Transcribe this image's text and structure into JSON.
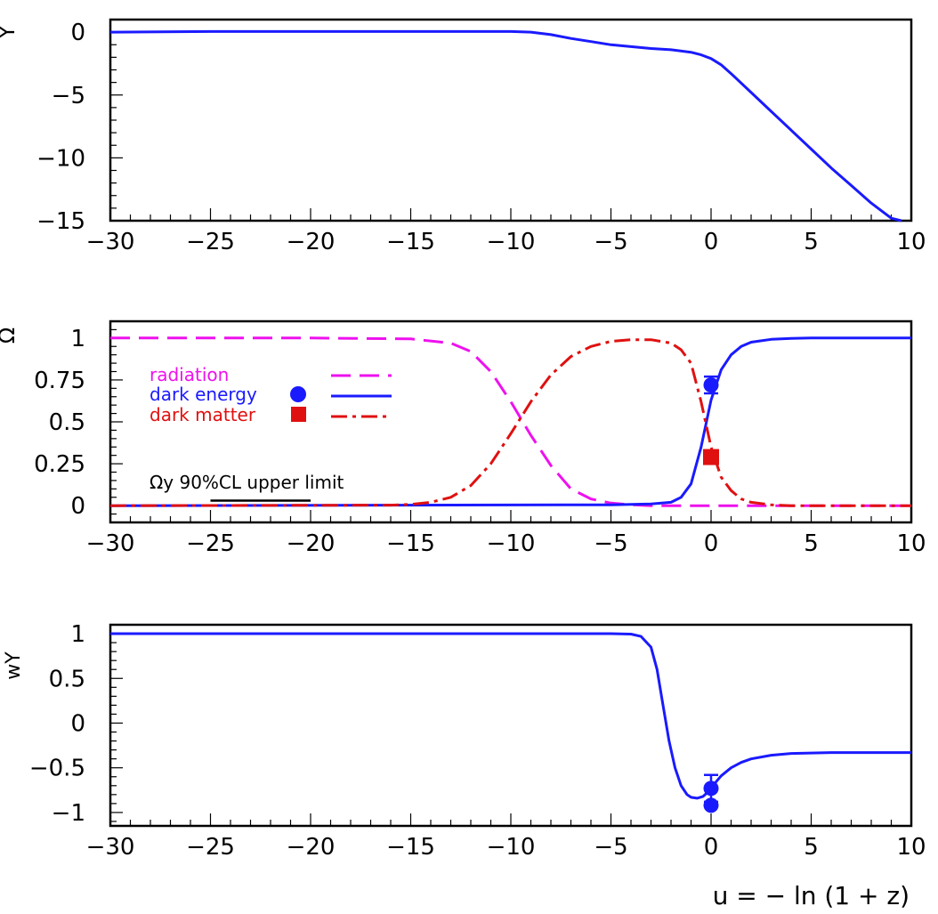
{
  "colors": {
    "frame": "#000000",
    "dark_energy": "#1a1aff",
    "dark_matter": "#e01010",
    "radiation": "#ee11ee"
  },
  "x_axis": {
    "ticks": [
      "−30",
      "−25",
      "−20",
      "−15",
      "−10",
      "−5",
      "0",
      "5",
      "10"
    ],
    "label": "u = − ln (1 + z)"
  },
  "chart_data": [
    {
      "type": "line",
      "ylabel": "Y",
      "xlim": [
        -30,
        10
      ],
      "ylim": [
        -15,
        1
      ],
      "y_ticks": [
        "0",
        "−5",
        "−10",
        "−15"
      ],
      "series": [
        {
          "color": "#1a1aff",
          "style": "solid",
          "x": [
            -30,
            -25,
            -20,
            -15,
            -10,
            -9,
            -8,
            -7,
            -6,
            -5,
            -4,
            -3,
            -2,
            -1,
            -0.5,
            0,
            0.5,
            1,
            2,
            3,
            4,
            5,
            6,
            7,
            8,
            9,
            9.5
          ],
          "y": [
            0,
            0.05,
            0.05,
            0.05,
            0.05,
            0,
            -0.2,
            -0.5,
            -0.75,
            -1.0,
            -1.15,
            -1.3,
            -1.4,
            -1.6,
            -1.8,
            -2.1,
            -2.6,
            -3.3,
            -4.8,
            -6.3,
            -7.8,
            -9.3,
            -10.8,
            -12.2,
            -13.6,
            -14.8,
            -15
          ]
        }
      ]
    },
    {
      "type": "line",
      "ylabel": "Ω",
      "xlim": [
        -30,
        10
      ],
      "ylim": [
        -0.1,
        1.1
      ],
      "y_ticks": [
        "1",
        "0.75",
        "0.5",
        "0.25",
        "0"
      ],
      "legend": [
        "radiation",
        "dark energy",
        "dark matter"
      ],
      "annotation": "Ωy 90%CL upper limit",
      "series": [
        {
          "name": "radiation",
          "color": "#ee11ee",
          "style": "dash",
          "x": [
            -30,
            -20,
            -15,
            -13,
            -12,
            -11,
            -10,
            -9,
            -8,
            -7,
            -6,
            -5,
            -4,
            -3,
            0,
            10
          ],
          "y": [
            1,
            1,
            0.995,
            0.97,
            0.92,
            0.8,
            0.62,
            0.42,
            0.24,
            0.1,
            0.04,
            0.015,
            0.005,
            0,
            0,
            0
          ]
        },
        {
          "name": "dark energy",
          "color": "#1a1aff",
          "style": "solid",
          "x": [
            -30,
            -5,
            -3,
            -2,
            -1.5,
            -1,
            -0.5,
            0,
            0.5,
            1,
            1.5,
            2,
            3,
            4,
            5,
            10
          ],
          "y": [
            0,
            0.005,
            0.01,
            0.02,
            0.05,
            0.13,
            0.35,
            0.63,
            0.81,
            0.9,
            0.95,
            0.975,
            0.992,
            0.998,
            1,
            1
          ]
        },
        {
          "name": "dark matter",
          "color": "#e01010",
          "style": "dashdot",
          "x": [
            -30,
            -16,
            -15,
            -14,
            -13,
            -12,
            -11,
            -10,
            -9,
            -8,
            -7,
            -6,
            -5,
            -4,
            -3,
            -2,
            -1.5,
            -1,
            -0.5,
            0,
            0.5,
            1,
            1.5,
            2,
            3,
            4,
            10
          ],
          "y": [
            0,
            0.003,
            0.008,
            0.02,
            0.05,
            0.12,
            0.25,
            0.43,
            0.62,
            0.78,
            0.89,
            0.95,
            0.98,
            0.99,
            0.99,
            0.97,
            0.93,
            0.85,
            0.62,
            0.35,
            0.17,
            0.09,
            0.04,
            0.02,
            0.005,
            0,
            0
          ]
        }
      ],
      "points": [
        {
          "name": "dark energy",
          "x": 0,
          "y": 0.72,
          "err": 0.05,
          "marker": "circle",
          "color": "#1a1aff"
        },
        {
          "name": "dark matter",
          "x": 0,
          "y": 0.29,
          "marker": "square",
          "color": "#e01010"
        }
      ],
      "limit_bar": {
        "x": [
          -25,
          -20
        ],
        "y": 0.03
      }
    },
    {
      "type": "line",
      "ylabel": "wY",
      "xlim": [
        -30,
        10
      ],
      "ylim": [
        -1.15,
        1.1
      ],
      "y_ticks": [
        "1",
        "0.5",
        "0",
        "−0.5",
        "−1"
      ],
      "series": [
        {
          "color": "#1a1aff",
          "style": "solid",
          "x": [
            -30,
            -5,
            -4,
            -3.5,
            -3,
            -2.7,
            -2.4,
            -2.1,
            -1.8,
            -1.5,
            -1.2,
            -1,
            -0.7,
            -0.4,
            -0.1,
            0.2,
            0.5,
            1,
            1.5,
            2,
            3,
            4,
            5,
            6,
            10
          ],
          "y": [
            1,
            1,
            0.995,
            0.97,
            0.85,
            0.6,
            0.2,
            -0.2,
            -0.5,
            -0.7,
            -0.8,
            -0.83,
            -0.84,
            -0.82,
            -0.76,
            -0.67,
            -0.59,
            -0.5,
            -0.44,
            -0.4,
            -0.36,
            -0.34,
            -0.335,
            -0.33,
            -0.33
          ]
        }
      ],
      "points": [
        {
          "x": 0,
          "y": -0.73,
          "err": 0.15,
          "marker": "circle",
          "color": "#1a1aff"
        },
        {
          "x": 0,
          "y": -0.92,
          "marker": "circle",
          "color": "#1a1aff"
        }
      ]
    }
  ]
}
